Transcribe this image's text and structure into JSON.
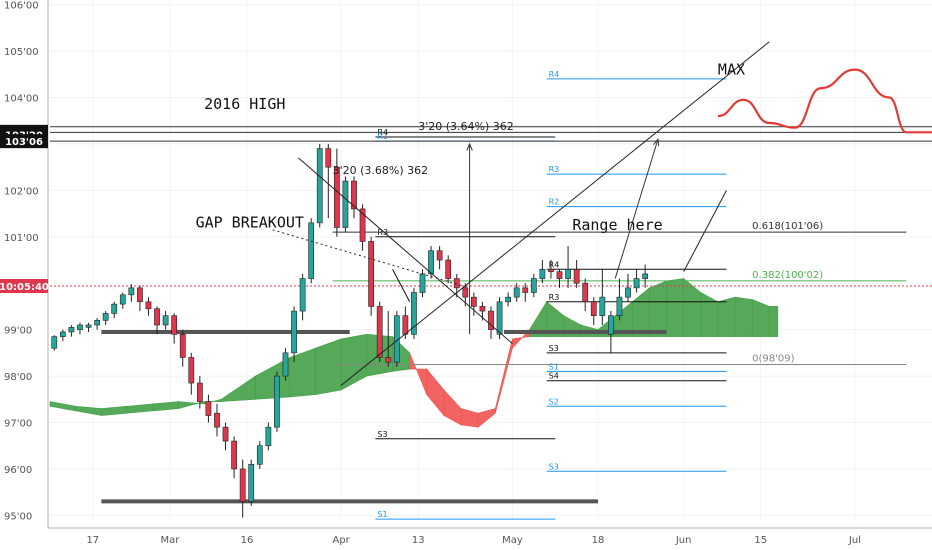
{
  "chart_data": {
    "type": "candlestick",
    "y_axis": {
      "min": 94.9,
      "max": 106.1,
      "ticks": [
        {
          "value": 106,
          "label": "106'00"
        },
        {
          "value": 105,
          "label": "105'00"
        },
        {
          "value": 104,
          "label": "104'00"
        },
        {
          "value": 103,
          "label": "103'00"
        },
        {
          "value": 102,
          "label": "102'00"
        },
        {
          "value": 101,
          "label": "101'00"
        },
        {
          "value": 100,
          "label": "100'00"
        },
        {
          "value": 99,
          "label": "99'00"
        },
        {
          "value": 98,
          "label": "98'00"
        },
        {
          "value": 97,
          "label": "97'00"
        },
        {
          "value": 96,
          "label": "96'00"
        },
        {
          "value": 95,
          "label": "95'00"
        }
      ]
    },
    "x_axis": {
      "min": 0,
      "max": 103,
      "ticks": [
        {
          "value": 5,
          "label": "17"
        },
        {
          "value": 14,
          "label": "Mar"
        },
        {
          "value": 23,
          "label": "16"
        },
        {
          "value": 34,
          "label": "Apr"
        },
        {
          "value": 43,
          "label": "13"
        },
        {
          "value": 54,
          "label": "May"
        },
        {
          "value": 64,
          "label": "18"
        },
        {
          "value": 74,
          "label": "Jun"
        },
        {
          "value": 83,
          "label": "15"
        },
        {
          "value": 94,
          "label": "Jul"
        }
      ]
    },
    "price_tags": [
      {
        "value": 103.26,
        "label": "103'26",
        "color": "#111111"
      },
      {
        "value": 103.2,
        "label": "103'20",
        "color": "#111111"
      },
      {
        "value": 103.06,
        "label": "103'06",
        "color": "#111111"
      },
      {
        "value": 99.94,
        "label": "10:05:40",
        "color": "#e0364d"
      }
    ],
    "candles": [
      [
        98.6,
        98.85,
        98.55,
        98.88
      ],
      [
        98.85,
        98.95,
        98.75,
        99.0
      ],
      [
        98.95,
        99.05,
        98.85,
        99.1
      ],
      [
        99.0,
        99.1,
        98.9,
        99.15
      ],
      [
        99.05,
        99.1,
        98.95,
        99.15
      ],
      [
        99.1,
        99.2,
        99.0,
        99.25
      ],
      [
        99.2,
        99.35,
        99.1,
        99.4
      ],
      [
        99.35,
        99.55,
        99.25,
        99.6
      ],
      [
        99.55,
        99.75,
        99.45,
        99.8
      ],
      [
        99.75,
        99.9,
        99.6,
        99.98
      ],
      [
        99.9,
        99.6,
        99.4,
        99.95
      ],
      [
        99.6,
        99.45,
        99.3,
        99.7
      ],
      [
        99.45,
        99.1,
        98.9,
        99.5
      ],
      [
        99.1,
        99.3,
        99.0,
        99.4
      ],
      [
        99.3,
        98.9,
        98.7,
        99.35
      ],
      [
        98.9,
        98.4,
        98.2,
        99.0
      ],
      [
        98.4,
        97.85,
        97.6,
        98.5
      ],
      [
        97.85,
        97.45,
        97.3,
        98.0
      ],
      [
        97.45,
        97.15,
        97.0,
        97.6
      ],
      [
        97.2,
        96.9,
        96.7,
        97.4
      ],
      [
        96.9,
        96.6,
        96.4,
        97.0
      ],
      [
        96.6,
        96.0,
        95.8,
        96.7
      ],
      [
        96.0,
        95.3,
        94.95,
        96.2
      ],
      [
        95.3,
        96.1,
        95.2,
        96.2
      ],
      [
        96.1,
        96.5,
        96.0,
        96.6
      ],
      [
        96.5,
        96.9,
        96.4,
        97.0
      ],
      [
        96.9,
        98.0,
        96.8,
        98.1
      ],
      [
        98.0,
        98.5,
        97.9,
        98.6
      ],
      [
        98.5,
        99.4,
        98.3,
        99.5
      ],
      [
        99.4,
        100.1,
        99.2,
        100.2
      ],
      [
        100.1,
        101.3,
        100.0,
        101.4
      ],
      [
        101.3,
        102.9,
        101.2,
        103.0
      ],
      [
        102.9,
        102.5,
        101.4,
        103.0
      ],
      [
        102.5,
        101.2,
        101.0,
        102.9
      ],
      [
        101.2,
        102.2,
        101.1,
        102.3
      ],
      [
        102.2,
        101.6,
        101.4,
        102.3
      ],
      [
        101.6,
        100.9,
        100.7,
        101.7
      ],
      [
        100.9,
        99.5,
        99.3,
        101.0
      ],
      [
        99.5,
        98.4,
        98.3,
        99.6
      ],
      [
        98.4,
        98.3,
        98.2,
        99.4
      ],
      [
        98.3,
        99.3,
        98.2,
        99.4
      ],
      [
        99.3,
        98.9,
        98.8,
        99.5
      ],
      [
        98.9,
        99.8,
        98.8,
        99.9
      ],
      [
        99.8,
        100.2,
        99.7,
        100.3
      ],
      [
        100.2,
        100.7,
        100.1,
        100.8
      ],
      [
        100.7,
        100.5,
        100.3,
        100.8
      ],
      [
        100.5,
        100.1,
        100.0,
        100.6
      ],
      [
        100.1,
        99.9,
        99.7,
        100.2
      ],
      [
        99.9,
        99.7,
        99.5,
        100.0
      ],
      [
        99.7,
        99.5,
        99.3,
        99.8
      ],
      [
        99.5,
        99.4,
        99.2,
        99.6
      ],
      [
        99.4,
        99.0,
        98.8,
        99.5
      ],
      [
        98.9,
        99.6,
        98.8,
        99.7
      ],
      [
        99.6,
        99.7,
        99.5,
        99.8
      ],
      [
        99.7,
        99.9,
        99.6,
        100.0
      ],
      [
        99.9,
        99.8,
        99.6,
        100.0
      ],
      [
        99.8,
        100.1,
        99.7,
        100.2
      ],
      [
        100.1,
        100.3,
        100.0,
        100.5
      ],
      [
        100.3,
        100.25,
        100.1,
        100.5
      ],
      [
        100.25,
        100.1,
        99.9,
        100.3
      ],
      [
        100.1,
        100.3,
        99.9,
        100.8
      ],
      [
        100.3,
        100.0,
        99.9,
        100.5
      ],
      [
        100.0,
        99.6,
        99.4,
        100.1
      ],
      [
        99.6,
        99.3,
        99.1,
        99.7
      ],
      [
        99.3,
        99.7,
        99.1,
        100.3
      ],
      [
        98.9,
        99.3,
        98.5,
        99.4
      ],
      [
        99.3,
        99.7,
        99.2,
        100.1
      ],
      [
        99.7,
        99.9,
        99.6,
        100.2
      ],
      [
        99.9,
        100.1,
        99.8,
        100.3
      ],
      [
        100.1,
        100.2,
        99.9,
        100.4
      ]
    ],
    "cloud": [
      {
        "x": 0,
        "a": 97.45,
        "b": 97.35
      },
      {
        "x": 3,
        "a": 97.35,
        "b": 97.25
      },
      {
        "x": 6,
        "a": 97.3,
        "b": 97.15
      },
      {
        "x": 9,
        "a": 97.35,
        "b": 97.2
      },
      {
        "x": 12,
        "a": 97.4,
        "b": 97.25
      },
      {
        "x": 15,
        "a": 97.45,
        "b": 97.3
      },
      {
        "x": 18,
        "a": 97.4,
        "b": 97.45
      },
      {
        "x": 20,
        "a": 97.5,
        "b": 97.45
      },
      {
        "x": 24,
        "a": 98.0,
        "b": 97.5
      },
      {
        "x": 28,
        "a": 98.4,
        "b": 97.55
      },
      {
        "x": 31,
        "a": 98.6,
        "b": 97.6
      },
      {
        "x": 34,
        "a": 98.8,
        "b": 97.7
      },
      {
        "x": 37,
        "a": 98.9,
        "b": 98.0
      },
      {
        "x": 40,
        "a": 98.85,
        "b": 98.1
      },
      {
        "x": 42,
        "a": 98.5,
        "b": 98.15
      },
      {
        "x": 44,
        "a": 97.6,
        "b": 98.15
      },
      {
        "x": 46,
        "a": 97.15,
        "b": 97.7
      },
      {
        "x": 48,
        "a": 96.95,
        "b": 97.3
      },
      {
        "x": 50,
        "a": 96.9,
        "b": 97.2
      },
      {
        "x": 52,
        "a": 97.2,
        "b": 97.3
      },
      {
        "x": 54,
        "a": 98.6,
        "b": 98.8
      },
      {
        "x": 56,
        "a": 99.0,
        "b": 98.85
      },
      {
        "x": 58,
        "a": 99.6,
        "b": 98.85
      },
      {
        "x": 60,
        "a": 99.3,
        "b": 98.85
      },
      {
        "x": 62,
        "a": 99.1,
        "b": 98.85
      },
      {
        "x": 64,
        "a": 99.0,
        "b": 98.85
      },
      {
        "x": 66,
        "a": 99.3,
        "b": 98.85
      },
      {
        "x": 68,
        "a": 99.6,
        "b": 98.85
      },
      {
        "x": 70,
        "a": 99.9,
        "b": 98.85
      },
      {
        "x": 72,
        "a": 100.05,
        "b": 98.85
      },
      {
        "x": 74,
        "a": 100.1,
        "b": 98.85
      },
      {
        "x": 76,
        "a": 99.8,
        "b": 98.85
      },
      {
        "x": 78,
        "a": 99.6,
        "b": 98.85
      },
      {
        "x": 80,
        "a": 99.7,
        "b": 98.85
      },
      {
        "x": 82,
        "a": 99.65,
        "b": 98.85
      },
      {
        "x": 84,
        "a": 99.5,
        "b": 98.85
      },
      {
        "x": 85,
        "a": 99.5,
        "b": 98.85
      }
    ],
    "hlines": [
      {
        "x1": 6,
        "x2": 35,
        "y": 98.95,
        "color": "#555555",
        "width": 4
      },
      {
        "x1": 6,
        "x2": 64,
        "y": 95.3,
        "color": "#555555",
        "width": 4
      },
      {
        "x1": 53,
        "x2": 72,
        "y": 98.95,
        "color": "#555555",
        "width": 4
      },
      {
        "x1": 0,
        "x2": 103,
        "y": 103.37,
        "color": "#333333",
        "width": 1
      },
      {
        "x1": 0,
        "x2": 103,
        "y": 103.25,
        "color": "#333333",
        "width": 1
      },
      {
        "x1": 0,
        "x2": 103,
        "y": 103.06,
        "color": "#333333",
        "width": 1
      },
      {
        "x1": 0,
        "x2": 103,
        "y": 99.94,
        "color": "#e0364d",
        "width": 1,
        "dash": "2,2"
      }
    ],
    "pivot_sets": [
      {
        "x1": 38,
        "x2": 59,
        "levels": [
          {
            "name": "R4",
            "value": 103.15,
            "color": "#111111"
          },
          {
            "name": "R1",
            "value": 103.06,
            "color": "#2196f3"
          },
          {
            "name": "R3",
            "value": 101.0,
            "color": "#111111"
          },
          {
            "name": "S3",
            "value": 96.65,
            "color": "#111111"
          },
          {
            "name": "S1",
            "value": 94.92,
            "color": "#2196f3"
          }
        ]
      },
      {
        "x1": 58,
        "x2": 79,
        "levels": [
          {
            "name": "R4",
            "value": 104.4,
            "color": "#2196f3"
          },
          {
            "name": "R3",
            "value": 102.35,
            "color": "#2196f3"
          },
          {
            "name": "R2",
            "value": 101.65,
            "color": "#2196f3"
          },
          {
            "name": "R4",
            "value": 100.3,
            "color": "#111111"
          },
          {
            "name": "R3",
            "value": 99.6,
            "color": "#111111"
          },
          {
            "name": "S3",
            "value": 98.5,
            "color": "#111111"
          },
          {
            "name": "S1",
            "value": 98.1,
            "color": "#2196f3"
          },
          {
            "name": "S4",
            "value": 97.9,
            "color": "#111111"
          },
          {
            "name": "S2",
            "value": 97.35,
            "color": "#2196f3"
          },
          {
            "name": "S3",
            "value": 95.95,
            "color": "#2196f3"
          }
        ]
      }
    ],
    "fib": [
      {
        "label": "0.618(101'06)",
        "value": 101.1,
        "color": "#333333",
        "x1": 33,
        "x2": 100
      },
      {
        "label": "0.382(100'02)",
        "value": 100.05,
        "color": "#4caf50",
        "x1": 33,
        "x2": 100
      },
      {
        "label": "0(98'09)",
        "value": 98.25,
        "color": "#888888",
        "x1": 33,
        "x2": 100
      }
    ],
    "trendlines": [
      {
        "x1": 29,
        "y1": 102.7,
        "x2": 54,
        "y2": 98.7,
        "color": "#222222",
        "dash": ""
      },
      {
        "x1": 34,
        "y1": 97.8,
        "x2": 84,
        "y2": 105.2,
        "color": "#222222",
        "dash": ""
      },
      {
        "x1": 26,
        "y1": 101.15,
        "x2": 49,
        "y2": 99.9,
        "color": "#222222",
        "dash": "2,3"
      },
      {
        "x1": 74,
        "y1": 100.25,
        "x2": 79,
        "y2": 102.0,
        "color": "#222222",
        "dash": ""
      },
      {
        "x1": 40,
        "y1": 100.3,
        "x2": 42,
        "y2": 99.6,
        "color": "#111111",
        "dash": ""
      }
    ],
    "arrows": [
      {
        "x1": 66,
        "y1": 100.1,
        "x2": 71,
        "y2": 103.1
      },
      {
        "x1": 49,
        "y1": 98.9,
        "x2": 49,
        "y2": 103.0
      }
    ],
    "measure_labels": [
      {
        "label": "3'20 (3.68%) 362",
        "x": 33,
        "y": 102.35
      },
      {
        "label": "3'20 (3.64%) 362",
        "x": 43,
        "y": 103.3
      }
    ],
    "text_annotations": [
      {
        "label": "2016 HIGH",
        "x": 18,
        "y": 103.75
      },
      {
        "label": "GAP BREAKOUT",
        "x": 17,
        "y": 101.2
      },
      {
        "label": "Range here",
        "x": 61,
        "y": 101.15
      },
      {
        "label": "MAX",
        "x": 78,
        "y": 104.5
      }
    ],
    "projection": [
      {
        "x": 78,
        "y": 103.6
      },
      {
        "x": 81,
        "y": 103.95
      },
      {
        "x": 84,
        "y": 103.45
      },
      {
        "x": 87,
        "y": 103.35
      },
      {
        "x": 90,
        "y": 104.2
      },
      {
        "x": 94,
        "y": 104.6
      },
      {
        "x": 98,
        "y": 104.0
      },
      {
        "x": 100,
        "y": 103.25
      },
      {
        "x": 103,
        "y": 103.25
      },
      {
        "x": 106,
        "y": 103.7
      }
    ]
  }
}
